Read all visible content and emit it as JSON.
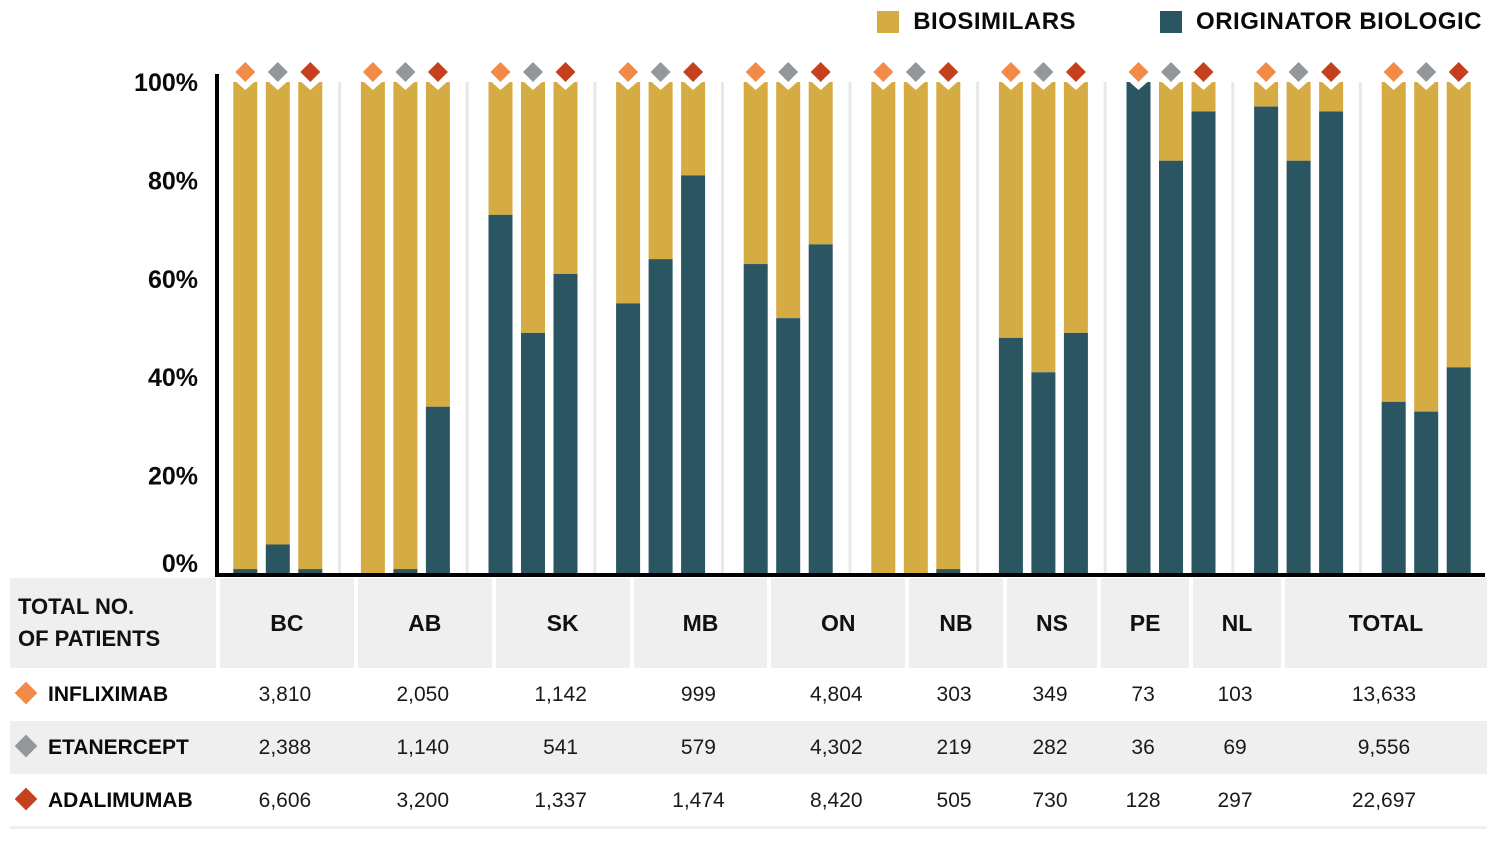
{
  "legend": {
    "biosimilars_label": "BIOSIMILARS",
    "originator_label": "ORIGINATOR BIOLOGIC"
  },
  "colors": {
    "biosimilars": "#d5ab43",
    "originator": "#2a5561",
    "infliximab": "#f28a48",
    "etanercept": "#939799",
    "adalimumab": "#c5401d",
    "axis": "#000000",
    "separator": "#e8e8e8",
    "table_shade": "#eeefee"
  },
  "chart_data": {
    "type": "bar",
    "stacked": true,
    "normalized": true,
    "title": "",
    "xlabel": "",
    "ylabel": "",
    "ylim": [
      0,
      100
    ],
    "yticks": [
      "0%",
      "20%",
      "40%",
      "60%",
      "80%",
      "100%"
    ],
    "ytick_values": [
      0,
      20,
      40,
      60,
      80,
      100
    ],
    "categories": [
      "BC",
      "AB",
      "SK",
      "MB",
      "ON",
      "NB",
      "NS",
      "PE",
      "NL",
      "TOTAL"
    ],
    "drugs": [
      "INFLIXIMAB",
      "ETANERCEPT",
      "ADALIMUMAB"
    ],
    "legend_position": "top-right",
    "grid": false,
    "series": [
      {
        "name": "ORIGINATOR BIOLOGIC",
        "stack_position": "bottom",
        "values": {
          "INFLIXIMAB": [
            1,
            0,
            73,
            55,
            63,
            0,
            48,
            100,
            95,
            35
          ],
          "ETANERCEPT": [
            6,
            1,
            49,
            64,
            52,
            0,
            41,
            84,
            84,
            33
          ],
          "ADALIMUMAB": [
            1,
            34,
            61,
            81,
            67,
            1,
            49,
            94,
            94,
            42
          ]
        }
      },
      {
        "name": "BIOSIMILARS",
        "stack_position": "top",
        "values": {
          "INFLIXIMAB": [
            99,
            100,
            27,
            45,
            37,
            100,
            52,
            0,
            5,
            65
          ],
          "ETANERCEPT": [
            94,
            99,
            51,
            36,
            48,
            100,
            59,
            16,
            16,
            67
          ],
          "ADALIMUMAB": [
            99,
            66,
            39,
            19,
            33,
            99,
            51,
            6,
            6,
            58
          ]
        }
      }
    ]
  },
  "table": {
    "header_label_line1": "TOTAL NO.",
    "header_label_line2": "OF PATIENTS",
    "columns": [
      "BC",
      "AB",
      "SK",
      "MB",
      "ON",
      "NB",
      "NS",
      "PE",
      "NL",
      "TOTAL"
    ],
    "rows": [
      {
        "label": "INFLIXIMAB",
        "marker": "diamond-orange",
        "values": [
          "3,810",
          "2,050",
          "1,142",
          "999",
          "4,804",
          "303",
          "349",
          "73",
          "103",
          "13,633"
        ]
      },
      {
        "label": "ETANERCEPT",
        "marker": "diamond-gray",
        "values": [
          "2,388",
          "1,140",
          "541",
          "579",
          "4,302",
          "219",
          "282",
          "36",
          "69",
          "9,556"
        ]
      },
      {
        "label": "ADALIMUMAB",
        "marker": "diamond-red",
        "values": [
          "6,606",
          "3,200",
          "1,337",
          "1,474",
          "8,420",
          "505",
          "730",
          "128",
          "297",
          "22,697"
        ]
      }
    ]
  }
}
